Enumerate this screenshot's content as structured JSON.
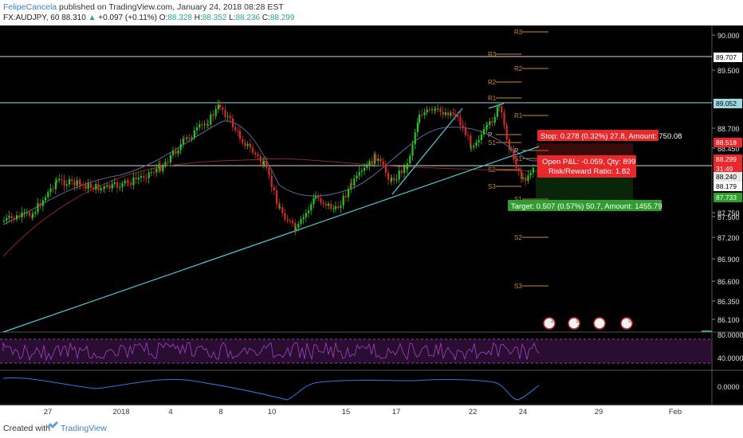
{
  "header": {
    "author": "FelipeCancela",
    "published": "published on TradingView.com, January 24, 2018 08:28 EST",
    "symbol": "FX:AUDJPY, 60",
    "last": "88.310",
    "change_arrow": "▲",
    "change": "+0.097 (+0.11%)",
    "open_label": "O:",
    "open": "88.328",
    "high_label": "H:",
    "high": "88.352",
    "low_label": "L:",
    "low": "88.236",
    "close_label": "C:",
    "close": "88.299"
  },
  "footer": {
    "created_with": "Created with",
    "brand": "TradingView"
  },
  "colors": {
    "background": "#000000",
    "up": "#26c425",
    "down": "#d62b2b",
    "trendline": "#4ec7d2",
    "ma_fast": "#5a6a9a",
    "ma_slow": "#8a2a24",
    "pivot": "#c98a3a",
    "rsi": "#9b3ab8",
    "osc": "#2b7be0",
    "stop_box": "#e8282b",
    "target_box": "#2f9e2f"
  },
  "chart_data": [
    {
      "type": "candlestick",
      "title": "",
      "x_ticks": [
        "27",
        "2018",
        "4",
        "8",
        "10",
        "15",
        "17",
        "22",
        "24",
        "29",
        "Feb"
      ],
      "y_ticks": [
        "90.000",
        "89.500",
        "88.700",
        "88.450",
        "87.750",
        "87.500",
        "87.200",
        "86.900",
        "86.600",
        "86.350",
        "86.100"
      ],
      "y_range": [
        86.0,
        90.15
      ],
      "price_labels": [
        {
          "value": "89.707",
          "color": "#ffffff"
        },
        {
          "value": "89.052",
          "color": "#9ed8e0"
        },
        {
          "value": "88.518",
          "color": "#e8282b"
        },
        {
          "value": "88.299",
          "color": "#e8282b"
        },
        {
          "value": "31:49",
          "color": "#e8282b"
        },
        {
          "value": "88.240",
          "color": "#e8e8e8"
        },
        {
          "value": "88.179",
          "color": "#ffffff"
        },
        {
          "value": "87.733",
          "color": "#2f9e2f"
        }
      ],
      "horizontal_levels": [
        89.707,
        89.052,
        88.179
      ],
      "pivots": [
        {
          "label": "R3"
        },
        {
          "label": "R3"
        },
        {
          "label": "R2"
        },
        {
          "label": "R2"
        },
        {
          "label": "R1"
        },
        {
          "label": "R1"
        },
        {
          "label": "P"
        },
        {
          "label": "P"
        },
        {
          "label": "S1"
        },
        {
          "label": "S1"
        },
        {
          "label": "S2"
        },
        {
          "label": "S2"
        },
        {
          "label": "S3"
        },
        {
          "label": "S3"
        },
        {
          "label": "S1"
        }
      ],
      "position": {
        "stop_text": "Stop: 0.278 (0.32%) 27.8, Amount: 750.08",
        "pnl_text": "Open P&L: -0.059, Qty: 899",
        "rr_text": "Risk/Reward Ratio: 1.82",
        "target_text": "Target: 0.507 (0.57%) 50.7, Amount: 1455.79",
        "entry": 88.24,
        "stop": 88.518,
        "target": 87.733
      },
      "event_icons": [
        "2",
        "1",
        "",
        "5"
      ]
    },
    {
      "type": "line",
      "title": "",
      "y_ticks": [
        "80.0000",
        "40.0000"
      ],
      "bands": [
        80,
        40
      ]
    },
    {
      "type": "line",
      "title": "",
      "y_ticks": [
        "0.0000"
      ]
    }
  ]
}
